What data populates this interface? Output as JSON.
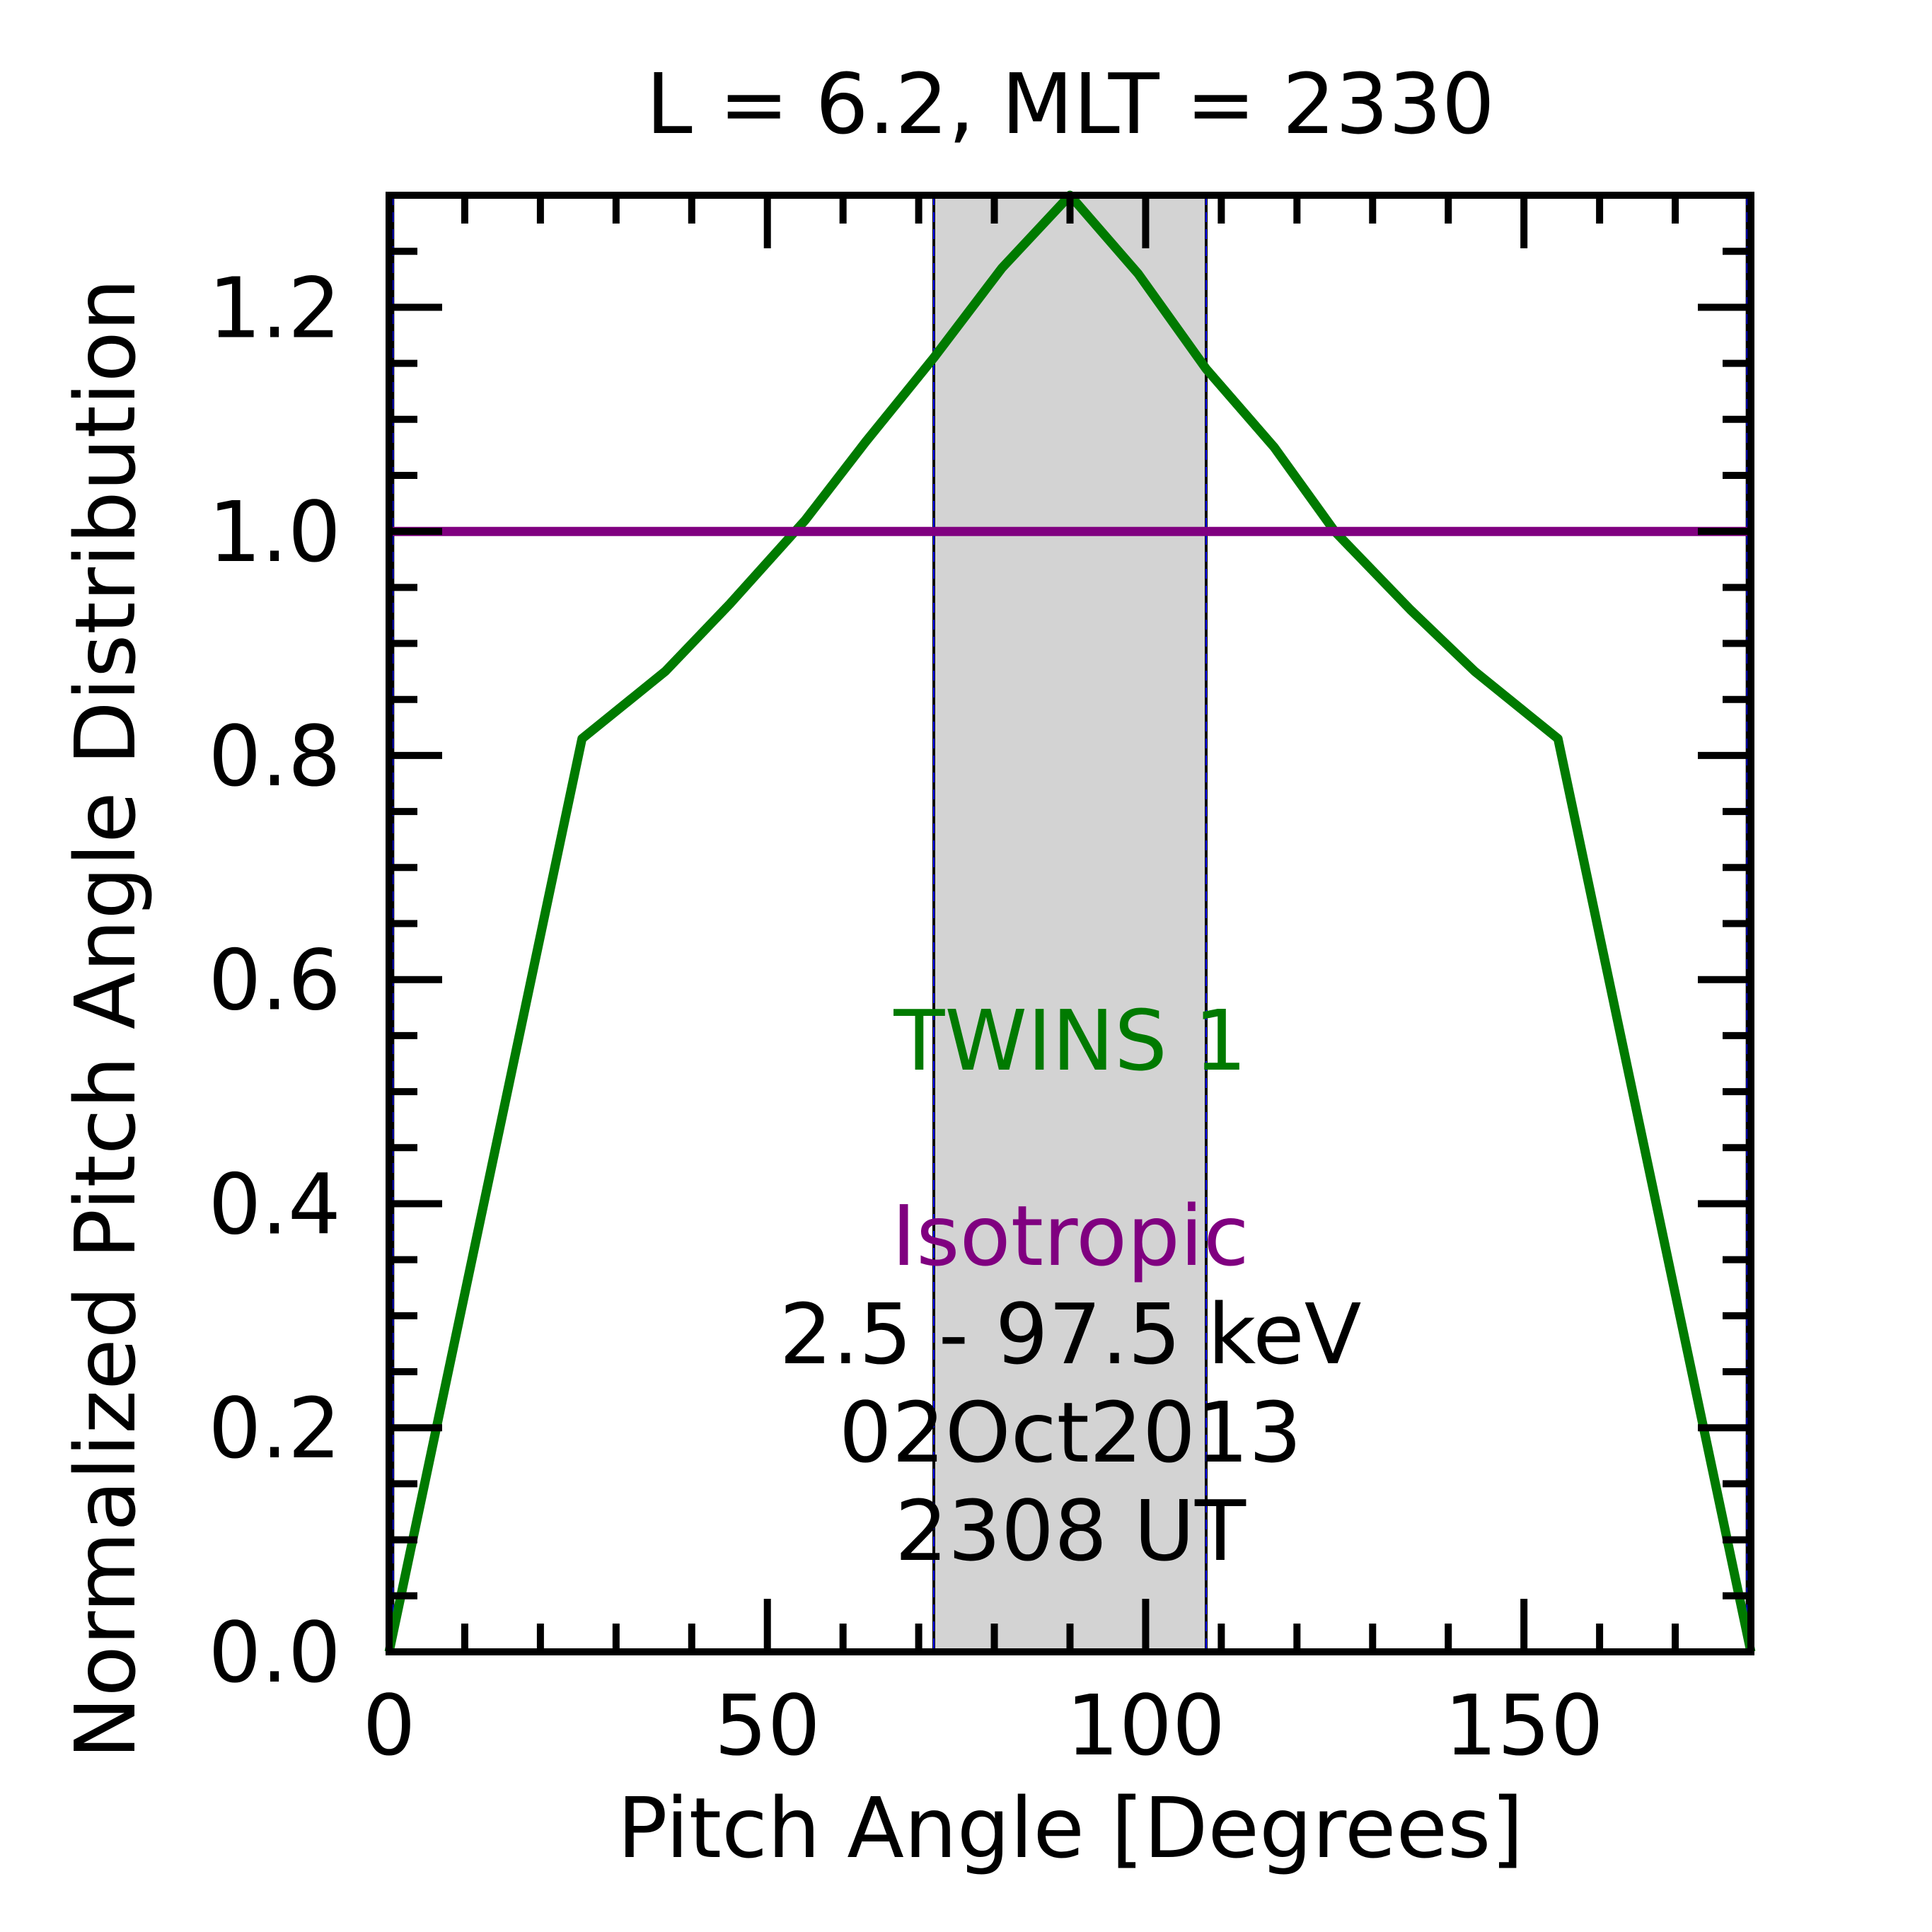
{
  "chart_data": {
    "type": "line",
    "title": "L =  6.2, MLT = 2330",
    "xlabel": "Pitch Angle [Degrees]",
    "ylabel": "Normalized Pitch Angle Distribution",
    "xlim": [
      0,
      180
    ],
    "ylim": [
      0,
      1.3
    ],
    "x_ticks": [
      0,
      50,
      100,
      150
    ],
    "x_tick_labels": [
      "0",
      "50",
      "100",
      "150"
    ],
    "y_ticks": [
      0.0,
      0.2,
      0.4,
      0.6,
      0.8,
      1.0,
      1.2
    ],
    "y_tick_labels": [
      "0.0",
      "0.2",
      "0.4",
      "0.6",
      "0.8",
      "1.0",
      "1.2"
    ],
    "grid": false,
    "shaded_band": {
      "x_range": [
        72,
        108
      ],
      "color": "#d3d3d3"
    },
    "vertical_lines": [
      0.5,
      72,
      108,
      179.5
    ],
    "series": [
      {
        "name": "TWINS 1",
        "color": "#007a00",
        "x": [
          0,
          25.5,
          36.5,
          45,
          55,
          63,
          72,
          81,
          90,
          99,
          108,
          117,
          125,
          135,
          143.5,
          154.5,
          180
        ],
        "y": [
          0.0,
          0.815,
          0.875,
          0.935,
          1.01,
          1.08,
          1.155,
          1.235,
          1.3,
          1.23,
          1.145,
          1.075,
          1.0,
          0.93,
          0.875,
          0.815,
          0.0
        ]
      },
      {
        "name": "Isotropic",
        "color": "#800080",
        "x": [
          0,
          180
        ],
        "y": [
          1.0,
          1.0
        ]
      }
    ],
    "annotations": [
      "2.5 - 97.5 keV",
      "02Oct2013",
      "2308 UT"
    ]
  }
}
